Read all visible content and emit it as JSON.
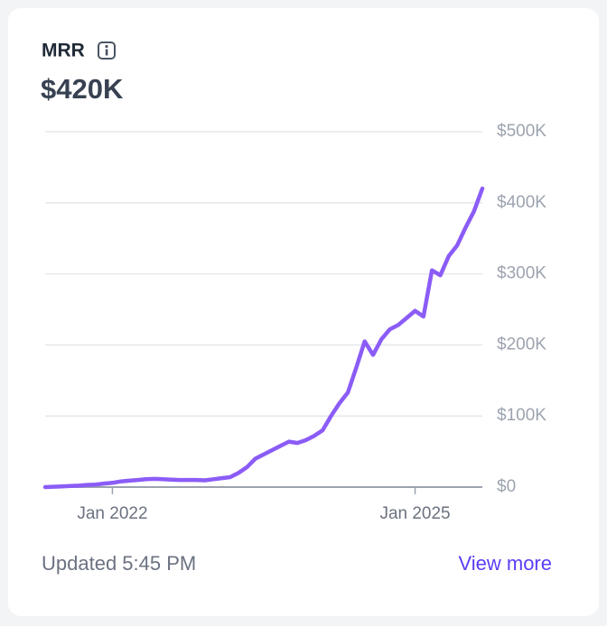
{
  "header": {
    "title": "MRR",
    "value": "$420K"
  },
  "chart_data": {
    "type": "line",
    "color": "#8b5cf6",
    "grid": true,
    "x": [
      "2021-05",
      "2021-06",
      "2021-07",
      "2021-08",
      "2021-09",
      "2021-10",
      "2021-11",
      "2021-12",
      "2022-01",
      "2022-02",
      "2022-03",
      "2022-04",
      "2022-05",
      "2022-06",
      "2022-07",
      "2022-08",
      "2022-09",
      "2022-10",
      "2022-11",
      "2022-12",
      "2023-01",
      "2023-02",
      "2023-03",
      "2023-04",
      "2023-05",
      "2023-06",
      "2023-07",
      "2023-08",
      "2023-09",
      "2023-10",
      "2023-11",
      "2023-12",
      "2024-01",
      "2024-02",
      "2024-03",
      "2024-04",
      "2024-05",
      "2024-06",
      "2024-07",
      "2024-08",
      "2024-09",
      "2024-10",
      "2024-11",
      "2024-12",
      "2025-01",
      "2025-02",
      "2025-03",
      "2025-04",
      "2025-05",
      "2025-06",
      "2025-07",
      "2025-08",
      "2025-09"
    ],
    "values": [
      0,
      500,
      1000,
      1500,
      2000,
      3000,
      3500,
      5000,
      6000,
      8000,
      9000,
      10000,
      11000,
      11500,
      11000,
      10500,
      10000,
      10000,
      10000,
      9500,
      11000,
      12500,
      14000,
      20000,
      28000,
      40000,
      46000,
      52000,
      58000,
      64000,
      62000,
      66000,
      72000,
      80000,
      100000,
      118000,
      133000,
      168000,
      205000,
      186000,
      208000,
      222000,
      228000,
      238000,
      248000,
      240000,
      305000,
      298000,
      325000,
      340000,
      365000,
      388000,
      420000
    ],
    "xlim": [
      "2021-05",
      "2025-09"
    ],
    "xticks": [
      {
        "value": "2022-01",
        "label": "Jan 2022"
      },
      {
        "value": "2025-01",
        "label": "Jan 2025"
      }
    ],
    "ylim": [
      0,
      500000
    ],
    "yticks": [
      {
        "value": 0,
        "label": "$0"
      },
      {
        "value": 100000,
        "label": "$100K"
      },
      {
        "value": 200000,
        "label": "$200K"
      },
      {
        "value": 300000,
        "label": "$300K"
      },
      {
        "value": 400000,
        "label": "$400K"
      },
      {
        "value": 500000,
        "label": "$500K"
      }
    ]
  },
  "footer": {
    "updated": "Updated 5:45 PM",
    "link": "View more"
  }
}
